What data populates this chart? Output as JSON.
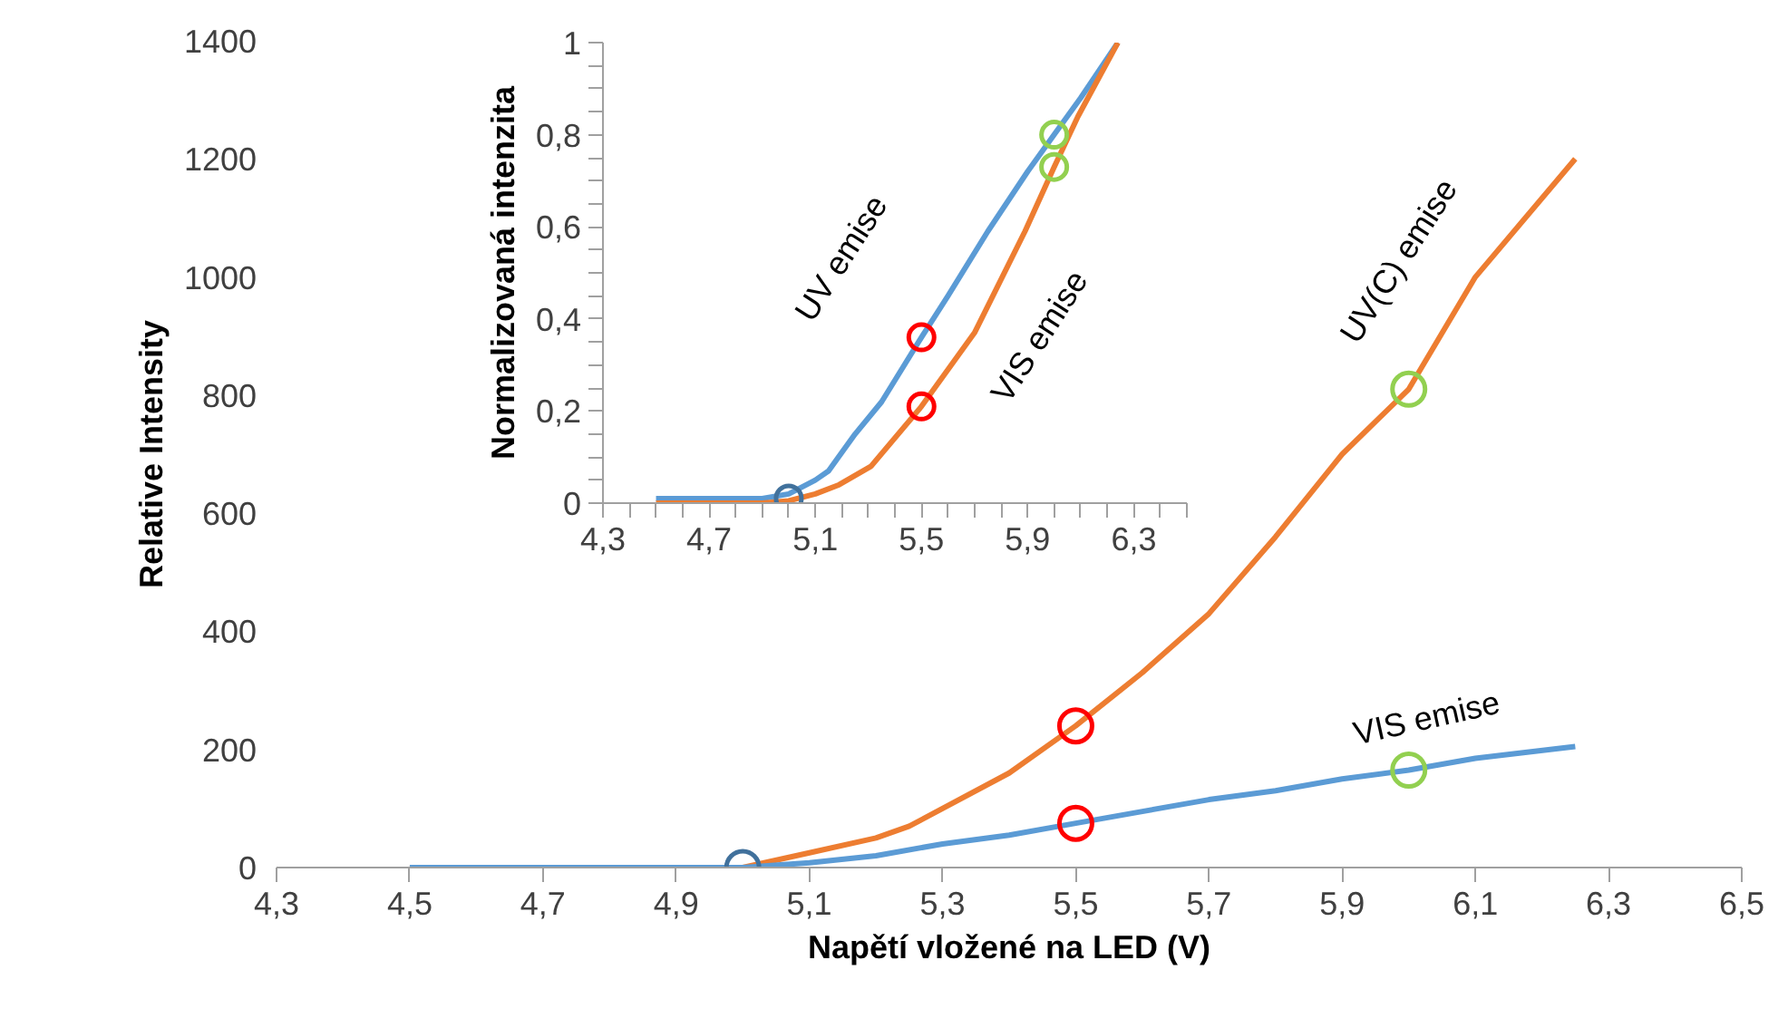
{
  "chart_data": [
    {
      "type": "line",
      "xlabel": "Napětí vložené na LED (V)",
      "ylabel": "Relative Intensity",
      "xlim": [
        4.3,
        6.5
      ],
      "ylim": [
        0,
        1400
      ],
      "xticks": [
        {
          "value": 4.3,
          "label": "4,3"
        },
        {
          "value": 4.5,
          "label": "4,5"
        },
        {
          "value": 4.7,
          "label": "4,7"
        },
        {
          "value": 4.9,
          "label": "4,9"
        },
        {
          "value": 5.1,
          "label": "5,1"
        },
        {
          "value": 5.3,
          "label": "5,3"
        },
        {
          "value": 5.5,
          "label": "5,5"
        },
        {
          "value": 5.7,
          "label": "5,7"
        },
        {
          "value": 5.9,
          "label": "5,9"
        },
        {
          "value": 6.1,
          "label": "6,1"
        },
        {
          "value": 6.3,
          "label": "6,3"
        },
        {
          "value": 6.5,
          "label": "6,5"
        }
      ],
      "yticks": [
        0,
        200,
        400,
        600,
        800,
        1000,
        1200,
        1400
      ],
      "grid": false,
      "line_style": "solid",
      "series": [
        {
          "name": "UV(C) emise",
          "color": "#ed7d31",
          "x": [
            4.5,
            4.9,
            5.0,
            5.1,
            5.2,
            5.25,
            5.4,
            5.5,
            5.6,
            5.7,
            5.8,
            5.9,
            6.0,
            6.1,
            6.25
          ],
          "values": [
            0,
            0,
            0,
            25,
            50,
            70,
            160,
            240,
            330,
            430,
            560,
            700,
            810,
            1000,
            1200
          ]
        },
        {
          "name": "VIS emise",
          "color": "#5b9bd5",
          "x": [
            4.5,
            4.9,
            5.0,
            5.1,
            5.2,
            5.3,
            5.4,
            5.5,
            5.6,
            5.7,
            5.8,
            5.9,
            6.0,
            6.1,
            6.25
          ],
          "values": [
            0,
            0,
            0,
            8,
            20,
            40,
            55,
            75,
            95,
            115,
            130,
            150,
            165,
            185,
            205
          ]
        },
        {
          "type": "scatter",
          "marker": "circle",
          "x": [
            5.0,
            5.5,
            5.5,
            6.0,
            6.0
          ],
          "values": [
            0,
            240,
            75,
            810,
            165
          ],
          "colors": [
            "#41719c",
            "#ff0000",
            "#ff0000",
            "#92d050",
            "#92d050"
          ]
        }
      ]
    },
    {
      "type": "line",
      "ylabel": "Normalizovaná intenzita",
      "xlim": [
        4.3,
        6.5
      ],
      "ylim": [
        0,
        1
      ],
      "xticks": [
        {
          "value": 4.3,
          "label": "4,3"
        },
        {
          "value": 4.4,
          "label": null
        },
        {
          "value": 4.5,
          "label": null
        },
        {
          "value": 4.6,
          "label": null
        },
        {
          "value": 4.7,
          "label": "4,7"
        },
        {
          "value": 4.8,
          "label": null
        },
        {
          "value": 4.9,
          "label": null
        },
        {
          "value": 5.0,
          "label": null
        },
        {
          "value": 5.1,
          "label": "5,1"
        },
        {
          "value": 5.2,
          "label": null
        },
        {
          "value": 5.3,
          "label": null
        },
        {
          "value": 5.4,
          "label": null
        },
        {
          "value": 5.5,
          "label": "5,5"
        },
        {
          "value": 5.6,
          "label": null
        },
        {
          "value": 5.7,
          "label": null
        },
        {
          "value": 5.8,
          "label": null
        },
        {
          "value": 5.9,
          "label": "5,9"
        },
        {
          "value": 6.0,
          "label": null
        },
        {
          "value": 6.1,
          "label": null
        },
        {
          "value": 6.2,
          "label": null
        },
        {
          "value": 6.3,
          "label": "6,3"
        },
        {
          "value": 6.4,
          "label": null
        },
        {
          "value": 6.5,
          "label": null
        }
      ],
      "yticks": [
        0,
        {
          "value": 0.05,
          "label": null
        },
        {
          "value": 0.1,
          "label": null
        },
        {
          "value": 0.15,
          "label": null
        },
        {
          "value": 0.2,
          "label": "0,2"
        },
        {
          "value": 0.25,
          "label": null
        },
        {
          "value": 0.3,
          "label": null
        },
        {
          "value": 0.35,
          "label": null
        },
        {
          "value": 0.4,
          "label": "0,4"
        },
        {
          "value": 0.45,
          "label": null
        },
        {
          "value": 0.5,
          "label": null
        },
        {
          "value": 0.55,
          "label": null
        },
        {
          "value": 0.6,
          "label": "0,6"
        },
        {
          "value": 0.65,
          "label": null
        },
        {
          "value": 0.7,
          "label": null
        },
        {
          "value": 0.75,
          "label": null
        },
        {
          "value": 0.8,
          "label": "0,8"
        },
        {
          "value": 0.85,
          "label": null
        },
        {
          "value": 0.9,
          "label": null
        },
        {
          "value": 0.95,
          "label": null
        },
        1
      ],
      "grid": false,
      "line_style": "solid",
      "series": [
        {
          "name": "UV emise",
          "color": "#5b9bd5",
          "x": [
            4.5,
            4.9,
            5.0,
            5.1,
            5.15,
            5.25,
            5.35,
            5.5,
            5.6,
            5.75,
            5.9,
            6.0,
            6.1,
            6.24
          ],
          "values": [
            0.01,
            0.01,
            0.02,
            0.05,
            0.07,
            0.15,
            0.22,
            0.36,
            0.45,
            0.59,
            0.72,
            0.8,
            0.88,
            1.0
          ]
        },
        {
          "name": "VIS emise",
          "color": "#ed7d31",
          "x": [
            4.5,
            4.9,
            5.0,
            5.1,
            5.19,
            5.31,
            5.5,
            5.7,
            5.89,
            6.0,
            6.09,
            6.24
          ],
          "values": [
            0,
            0,
            0.005,
            0.02,
            0.04,
            0.08,
            0.21,
            0.37,
            0.59,
            0.73,
            0.84,
            1.0
          ]
        },
        {
          "type": "scatter",
          "marker": "circle",
          "x": [
            5.0,
            5.5,
            5.5,
            6.0,
            6.0
          ],
          "values": [
            0.01,
            0.36,
            0.21,
            0.8,
            0.73
          ],
          "colors": [
            "#41719c",
            "#ff0000",
            "#ff0000",
            "#92d050",
            "#92d050"
          ]
        }
      ]
    }
  ]
}
